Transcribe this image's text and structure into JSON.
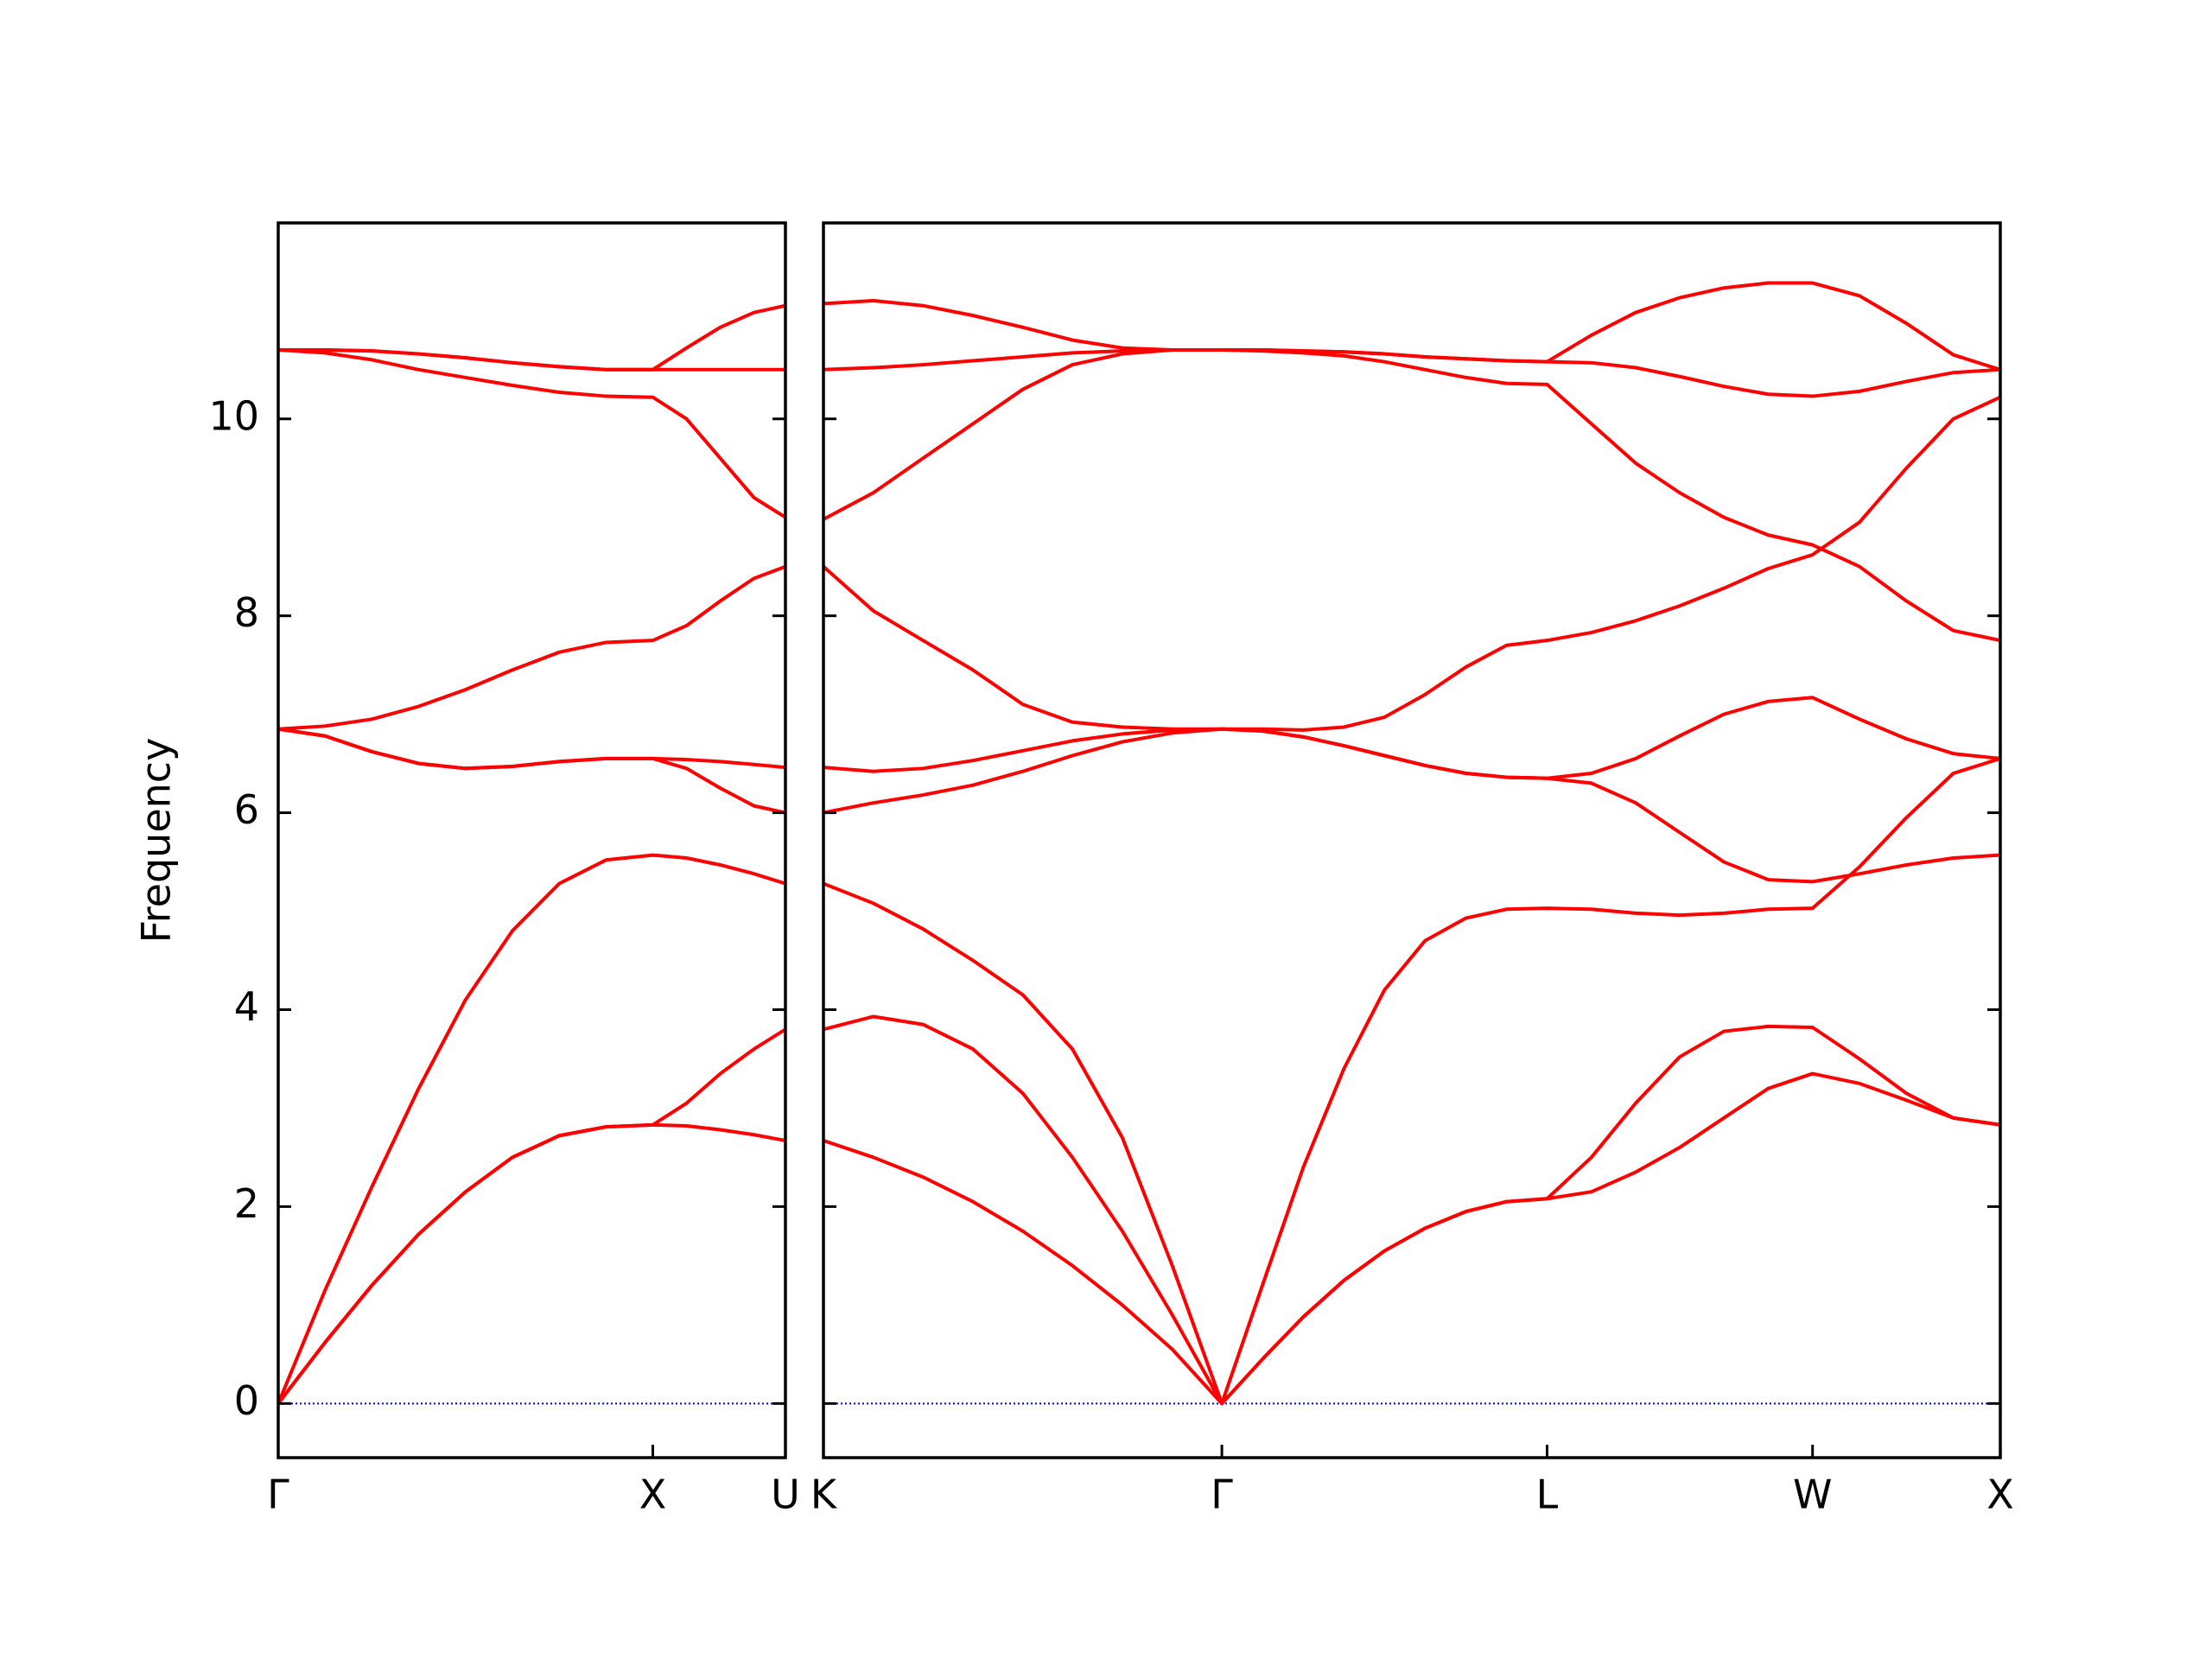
{
  "chart_data": [
    {
      "type": "line",
      "ylabel": "Frequency",
      "color": "#ff0000",
      "zero_line_color": "#0000cc",
      "ytick_labels": true,
      "xlim": [
        0,
        1.354
      ],
      "ylim": [
        -0.55,
        11.99
      ],
      "xticks": [
        {
          "value": 0,
          "label": "Γ"
        },
        {
          "value": 1,
          "label": "X"
        },
        {
          "value": 1.354,
          "label": "U"
        }
      ],
      "yticks": [
        0,
        2,
        4,
        6,
        8,
        10
      ],
      "x": [
        0,
        0.125,
        0.25,
        0.375,
        0.5,
        0.625,
        0.75,
        0.875,
        1,
        1.09,
        1.18,
        1.27,
        1.354
      ],
      "series": [
        {
          "values": [
            0,
            0.62,
            1.2,
            1.72,
            2.15,
            2.5,
            2.72,
            2.81,
            2.83,
            2.82,
            2.78,
            2.73,
            2.67
          ]
        },
        {
          "values": [
            0,
            0.62,
            1.2,
            1.72,
            2.15,
            2.5,
            2.72,
            2.81,
            2.83,
            3.05,
            3.35,
            3.6,
            3.8
          ]
        },
        {
          "values": [
            0,
            1.15,
            2.2,
            3.2,
            4.1,
            4.8,
            5.28,
            5.52,
            5.57,
            5.54,
            5.47,
            5.38,
            5.28
          ]
        },
        {
          "values": [
            6.85,
            6.78,
            6.62,
            6.5,
            6.45,
            6.47,
            6.52,
            6.55,
            6.55,
            6.45,
            6.25,
            6.07,
            6.0
          ]
        },
        {
          "values": [
            6.85,
            6.78,
            6.62,
            6.5,
            6.45,
            6.47,
            6.52,
            6.55,
            6.55,
            6.54,
            6.52,
            6.49,
            6.46
          ]
        },
        {
          "values": [
            6.85,
            6.88,
            6.95,
            7.08,
            7.25,
            7.45,
            7.63,
            7.73,
            7.75,
            7.9,
            8.15,
            8.38,
            8.5
          ]
        },
        {
          "values": [
            10.7,
            10.67,
            10.6,
            10.5,
            10.42,
            10.34,
            10.27,
            10.23,
            10.22,
            10.0,
            9.6,
            9.2,
            9.0
          ]
        },
        {
          "values": [
            10.7,
            10.7,
            10.69,
            10.66,
            10.62,
            10.57,
            10.53,
            10.5,
            10.5,
            10.5,
            10.5,
            10.5,
            10.5
          ]
        },
        {
          "values": [
            10.7,
            10.7,
            10.69,
            10.66,
            10.62,
            10.57,
            10.53,
            10.5,
            10.5,
            10.72,
            10.93,
            11.08,
            11.15
          ]
        }
      ]
    },
    {
      "type": "line",
      "color": "#ff0000",
      "zero_line_color": "#0000cc",
      "ytick_labels": false,
      "xlim": [
        1.354,
        4.488
      ],
      "ylim": [
        -0.55,
        11.99
      ],
      "xticks": [
        {
          "value": 1.354,
          "label": "K"
        },
        {
          "value": 2.415,
          "label": "Γ"
        },
        {
          "value": 3.281,
          "label": "L"
        },
        {
          "value": 3.988,
          "label": "W"
        },
        {
          "value": 4.488,
          "label": "X"
        }
      ],
      "yticks": [
        0,
        2,
        4,
        6,
        8,
        10
      ],
      "x": [
        1.354,
        1.487,
        1.619,
        1.752,
        1.885,
        2.017,
        2.15,
        2.283,
        2.415,
        2.523,
        2.632,
        2.74,
        2.848,
        2.956,
        3.065,
        3.173,
        3.281,
        3.399,
        3.517,
        3.634,
        3.752,
        3.87,
        3.988,
        4.113,
        4.238,
        4.363,
        4.488
      ],
      "series": [
        {
          "values": [
            2.67,
            2.5,
            2.3,
            2.05,
            1.75,
            1.4,
            1.0,
            0.55,
            0,
            0.45,
            0.88,
            1.25,
            1.55,
            1.78,
            1.95,
            2.05,
            2.08,
            2.15,
            2.35,
            2.6,
            2.9,
            3.2,
            3.35,
            3.25,
            3.08,
            2.9,
            2.83
          ]
        },
        {
          "values": [
            3.8,
            3.93,
            3.85,
            3.6,
            3.15,
            2.5,
            1.75,
            0.9,
            0,
            0.45,
            0.88,
            1.25,
            1.55,
            1.78,
            1.95,
            2.05,
            2.08,
            2.5,
            3.05,
            3.52,
            3.78,
            3.83,
            3.82,
            3.5,
            3.15,
            2.9,
            2.83
          ]
        },
        {
          "values": [
            5.28,
            5.08,
            4.82,
            4.5,
            4.15,
            3.6,
            2.7,
            1.4,
            0,
            1.2,
            2.4,
            3.4,
            4.2,
            4.7,
            4.93,
            5.02,
            5.03,
            5.02,
            4.98,
            4.96,
            4.98,
            5.02,
            5.03,
            5.45,
            5.95,
            6.4,
            6.55
          ]
        },
        {
          "values": [
            6.0,
            6.1,
            6.18,
            6.28,
            6.42,
            6.58,
            6.72,
            6.81,
            6.85,
            6.83,
            6.77,
            6.68,
            6.58,
            6.48,
            6.4,
            6.36,
            6.35,
            6.3,
            6.1,
            5.8,
            5.5,
            5.32,
            5.3,
            5.38,
            5.47,
            5.54,
            5.57
          ]
        },
        {
          "values": [
            6.46,
            6.42,
            6.45,
            6.53,
            6.63,
            6.73,
            6.8,
            6.84,
            6.85,
            6.83,
            6.77,
            6.68,
            6.58,
            6.48,
            6.4,
            6.36,
            6.35,
            6.4,
            6.55,
            6.78,
            7.0,
            7.13,
            7.17,
            6.95,
            6.75,
            6.6,
            6.55
          ]
        },
        {
          "values": [
            8.5,
            8.05,
            7.75,
            7.45,
            7.1,
            6.92,
            6.87,
            6.85,
            6.85,
            6.85,
            6.84,
            6.87,
            6.97,
            7.2,
            7.48,
            7.7,
            7.75,
            7.83,
            7.95,
            8.1,
            8.28,
            8.48,
            8.62,
            8.95,
            9.5,
            10.0,
            10.22
          ]
        },
        {
          "values": [
            8.98,
            9.25,
            9.6,
            9.95,
            10.3,
            10.55,
            10.66,
            10.7,
            10.7,
            10.69,
            10.67,
            10.64,
            10.58,
            10.5,
            10.42,
            10.36,
            10.35,
            9.95,
            9.55,
            9.25,
            9.0,
            8.82,
            8.72,
            8.5,
            8.15,
            7.85,
            7.75
          ]
        },
        {
          "values": [
            10.5,
            10.52,
            10.55,
            10.59,
            10.63,
            10.67,
            10.69,
            10.7,
            10.7,
            10.7,
            10.69,
            10.68,
            10.66,
            10.63,
            10.61,
            10.59,
            10.58,
            10.57,
            10.52,
            10.43,
            10.33,
            10.25,
            10.23,
            10.28,
            10.38,
            10.47,
            10.5
          ]
        },
        {
          "values": [
            11.17,
            11.2,
            11.15,
            11.05,
            10.93,
            10.8,
            10.72,
            10.7,
            10.7,
            10.7,
            10.69,
            10.68,
            10.66,
            10.63,
            10.61,
            10.59,
            10.58,
            10.85,
            11.08,
            11.23,
            11.33,
            11.38,
            11.38,
            11.25,
            10.97,
            10.65,
            10.5
          ]
        }
      ]
    }
  ]
}
